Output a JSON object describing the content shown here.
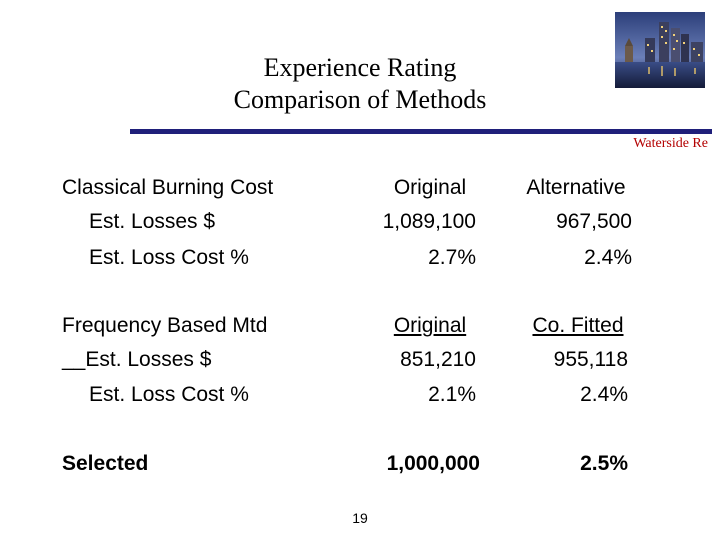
{
  "title": {
    "line1": "Experience Rating",
    "line2": "Comparison of Methods"
  },
  "company": "Waterside Re",
  "logo_image": "waterfront-city-skyline-photo",
  "colors": {
    "rule": "#1f1f7a",
    "company": "#b30000"
  },
  "classical": {
    "heading": "Classical Burning Cost",
    "col1_header": "Original",
    "col2_header": "Alternative",
    "rows": [
      {
        "label": "Est. Losses $",
        "original": "1,089,100",
        "alternative": "967,500"
      },
      {
        "label": "Est. Loss Cost %",
        "original": "2.7%",
        "alternative": "2.4%"
      }
    ]
  },
  "frequency": {
    "heading": "Frequency Based Mtd",
    "col1_header": "Original",
    "col2_header": "Co. Fitted",
    "rows": [
      {
        "label": "Est. Losses $",
        "prefix": "__",
        "original": "851,210",
        "fitted": "955,118"
      },
      {
        "label": "Est. Loss Cost %",
        "original": "2.1%",
        "fitted": "2.4%"
      }
    ]
  },
  "selected": {
    "label": "Selected",
    "losses": "1,000,000",
    "loss_cost": "2.5%"
  },
  "page_number": "19"
}
